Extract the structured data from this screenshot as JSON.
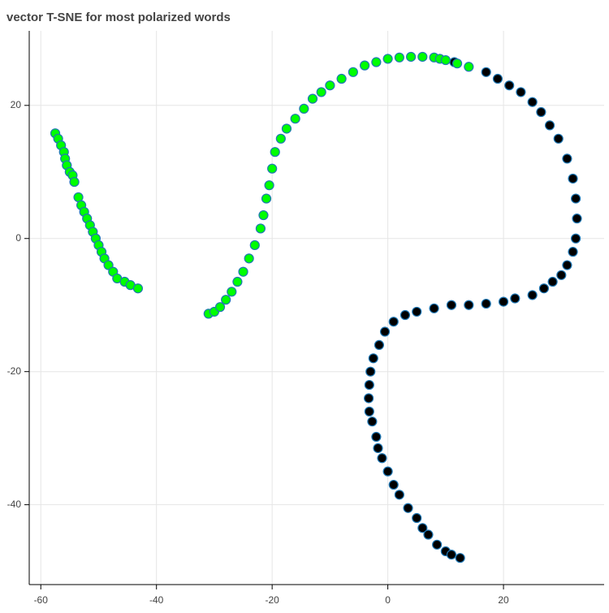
{
  "chart_data": {
    "type": "scatter",
    "title": "vector T-SNE for most polarized words",
    "xlim": [
      -62,
      37.4
    ],
    "ylim": [
      -52,
      31.2
    ],
    "xticks": [
      -60,
      -40,
      -20,
      0,
      20
    ],
    "yticks": [
      -40,
      -20,
      0,
      20
    ],
    "grid": true,
    "series": [
      {
        "color": "#000000",
        "x": [
          11.5,
          17,
          19,
          21,
          23,
          25,
          26.5,
          28,
          29.5,
          31,
          32,
          32.5,
          32.7,
          32.5,
          32,
          31,
          30,
          28.5,
          27,
          25,
          22,
          20,
          17,
          14,
          11,
          8,
          5,
          3,
          1,
          -0.5,
          -1.5,
          -2.5,
          -3,
          -3.2,
          -3.3,
          -3.2,
          -2.7,
          -2,
          -1.7,
          -1,
          0,
          1,
          2,
          3.5,
          5,
          6,
          7,
          8.5,
          10,
          11,
          12.5
        ],
        "values": [
          26.5,
          25,
          24,
          23,
          22,
          20.5,
          19,
          17,
          15,
          12,
          9,
          6,
          3,
          0,
          -2,
          -4,
          -5.5,
          -6.5,
          -7.5,
          -8.5,
          -9,
          -9.5,
          -9.8,
          -10,
          -10,
          -10.5,
          -11,
          -11.5,
          -12.5,
          -14,
          -16,
          -18,
          -20,
          -22,
          -24,
          -26,
          -27.5,
          -29.8,
          -31.5,
          -33,
          -35,
          -37,
          -38.5,
          -40.5,
          -42,
          -43.5,
          -44.5,
          -46,
          -47,
          -47.5,
          -48
        ]
      },
      {
        "color": "#00ff00",
        "x": [
          -57.5,
          -57,
          -56.5,
          -56,
          -55.8,
          -55.5,
          -55,
          -54.5,
          -54.2,
          -53.5,
          -53,
          -52.5,
          -52,
          -51.5,
          -51,
          -50.5,
          -50,
          -49.5,
          -49,
          -48.3,
          -47.5,
          -46.8,
          -45.5,
          -44.5,
          -43.2,
          -31,
          -30,
          -29,
          -28,
          -27,
          -26,
          -25,
          -24,
          -23,
          -22,
          -21.5,
          -21,
          -20.5,
          -20,
          -19.5,
          -18.5,
          -17.5,
          -16,
          -14.5,
          -13,
          -11.5,
          -10,
          -8,
          -6,
          -4,
          -2,
          0,
          2,
          4,
          6,
          8,
          9,
          10,
          12,
          14
        ],
        "values": [
          15.8,
          15,
          14,
          13,
          12,
          11,
          10,
          9.5,
          8.5,
          6.2,
          5,
          4,
          3,
          2,
          1,
          0,
          -1,
          -2,
          -3,
          -4,
          -5,
          -6,
          -6.5,
          -7,
          -7.5,
          -11.3,
          -11,
          -10.3,
          -9.2,
          -8,
          -6.5,
          -5,
          -3,
          -1,
          1.5,
          3.5,
          6,
          8,
          10.5,
          13,
          15,
          16.5,
          18,
          19.5,
          21,
          22,
          23,
          24,
          25,
          26,
          26.5,
          27,
          27.2,
          27.3,
          27.3,
          27.2,
          27,
          26.8,
          26.3,
          25.8
        ]
      }
    ]
  }
}
